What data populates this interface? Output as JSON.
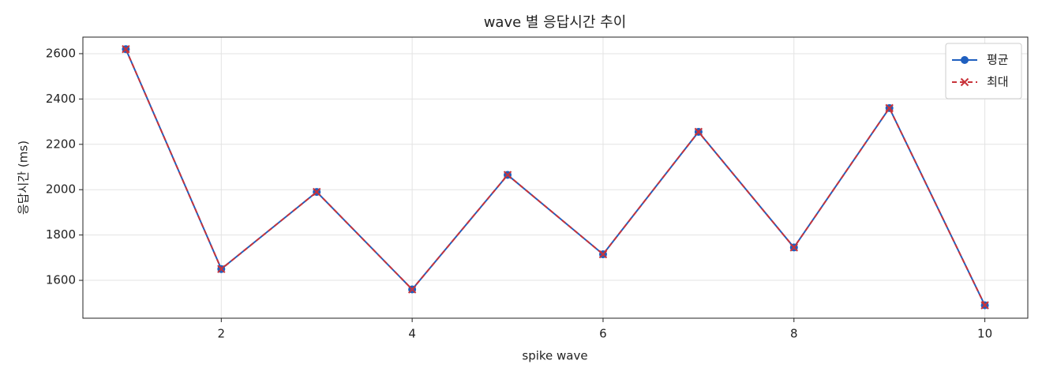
{
  "chart_data": {
    "type": "line",
    "title": "wave 별 응답시간 추이",
    "x_label": "spike wave",
    "y_label": "응답시간 (ms)",
    "x": [
      1,
      2,
      3,
      4,
      5,
      6,
      7,
      8,
      9,
      10
    ],
    "series": [
      {
        "name": "평균",
        "color": "#1f5fbf",
        "style": "solid",
        "marker": "circle",
        "values": [
          2620,
          1650,
          1990,
          1560,
          2065,
          1715,
          2255,
          1745,
          2360,
          1490
        ]
      },
      {
        "name": "최대",
        "color": "#c8333a",
        "style": "dashed",
        "marker": "x",
        "values": [
          2620,
          1650,
          1990,
          1560,
          2065,
          1715,
          2255,
          1745,
          2360,
          1490
        ]
      }
    ],
    "xlim": [
      0.55,
      10.45
    ],
    "xticks": [
      2,
      4,
      6,
      8,
      10
    ],
    "ylim": [
      1433,
      2673
    ],
    "yticks": [
      1600,
      1800,
      2000,
      2200,
      2400,
      2600
    ],
    "grid": true,
    "legend": "upper right"
  }
}
